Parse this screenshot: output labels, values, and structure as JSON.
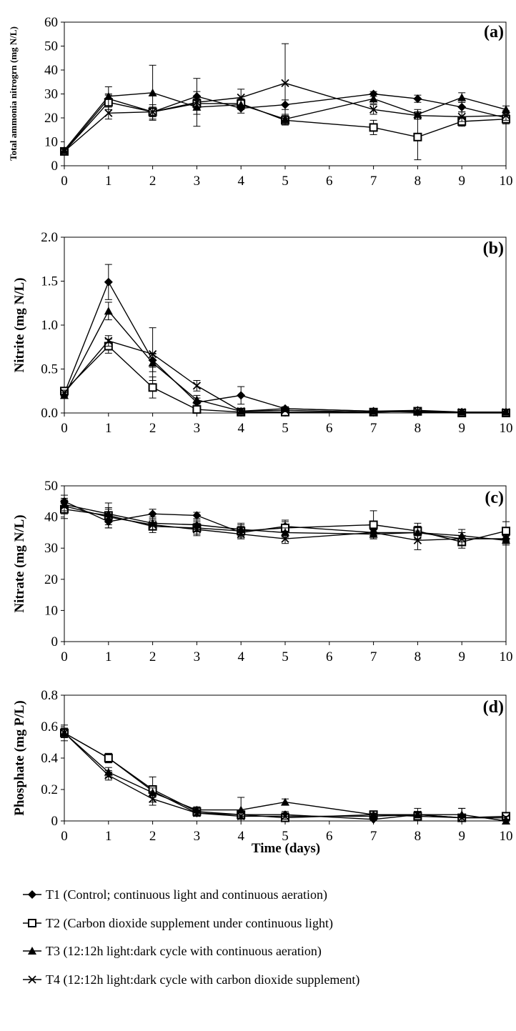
{
  "figure": {
    "x_title": "Time (days)"
  },
  "legend": [
    {
      "marker": "diamond",
      "label": "T1 (Control; continuous light and continuous aeration)"
    },
    {
      "marker": "square",
      "label": "T2 (Carbon dioxide supplement under continuous light)"
    },
    {
      "marker": "triangle",
      "label": "T3 (12:12h light:dark cycle with continuous aeration)"
    },
    {
      "marker": "cross",
      "label": "T4 (12:12h light:dark cycle with carbon dioxide supplement)"
    }
  ],
  "chart_data": [
    {
      "type": "line",
      "panel": "(a)",
      "ylabel": "Total ammonia nitrogrn (mg N/L)",
      "x_ticks": [
        "0",
        "1",
        "2",
        "3",
        "4",
        "5",
        "6",
        "7",
        "8",
        "9",
        "10"
      ],
      "y_ticks": [
        "0",
        "10",
        "20",
        "30",
        "40",
        "50",
        "60"
      ],
      "ylim": [
        0,
        60
      ],
      "x": [
        0,
        1,
        2,
        3,
        4,
        5,
        7,
        8,
        9,
        10
      ],
      "grid": false,
      "series": [
        {
          "name": "T1",
          "marker": "diamond",
          "values": [
            6,
            28,
            22.5,
            29,
            24,
            25.5,
            30,
            28,
            24.5,
            20
          ],
          "errors": [
            1,
            2,
            2,
            2,
            2,
            2,
            1,
            1.5,
            2,
            1
          ]
        },
        {
          "name": "T2",
          "marker": "square",
          "values": [
            6,
            26.5,
            22.5,
            26,
            26,
            19,
            16,
            12,
            18.5,
            19.5
          ],
          "errors": [
            1,
            3,
            2,
            2,
            2,
            2,
            3,
            9.5,
            2,
            2
          ]
        },
        {
          "name": "T3",
          "marker": "triangle",
          "values": [
            6.5,
            29,
            30.5,
            24.5,
            25.5,
            19.5,
            28,
            21.5,
            28.5,
            23.5
          ],
          "errors": [
            1,
            4,
            11.5,
            3,
            2,
            2,
            2,
            2,
            2,
            1.5
          ]
        },
        {
          "name": "T4",
          "marker": "cross",
          "values": [
            6,
            22,
            22.5,
            26.5,
            28.5,
            34.5,
            23.5,
            21,
            20.5,
            21
          ],
          "errors": [
            1,
            2.5,
            3,
            10,
            3.5,
            16.5,
            2,
            1.5,
            2,
            2
          ]
        }
      ]
    },
    {
      "type": "line",
      "panel": "(b)",
      "ylabel": "Nitrite (mg N/L)",
      "x_ticks": [
        "0",
        "1",
        "2",
        "3",
        "4",
        "5",
        "6",
        "7",
        "8",
        "9",
        "10"
      ],
      "y_ticks": [
        "0.0",
        "0.5",
        "1.0",
        "1.5",
        "2.0"
      ],
      "ylim": [
        0,
        2
      ],
      "x": [
        0,
        1,
        2,
        3,
        4,
        5,
        7,
        8,
        9,
        10
      ],
      "grid": false,
      "series": [
        {
          "name": "T1",
          "marker": "diamond",
          "values": [
            0.22,
            1.49,
            0.6,
            0.12,
            0.2,
            0.05,
            0.02,
            0.03,
            0.01,
            0.01
          ],
          "errors": [
            0.03,
            0.2,
            0.08,
            0.05,
            0.1,
            0.02,
            0.01,
            0.01,
            0.01,
            0.01
          ]
        },
        {
          "name": "T2",
          "marker": "square",
          "values": [
            0.25,
            0.76,
            0.29,
            0.04,
            0.01,
            0.01,
            0.01,
            0.02,
            0.0,
            0.0
          ],
          "errors": [
            0.03,
            0.08,
            0.12,
            0.03,
            0.01,
            0.01,
            0.01,
            0.01,
            0.01,
            0.01
          ]
        },
        {
          "name": "T3",
          "marker": "triangle",
          "values": [
            0.2,
            1.16,
            0.57,
            0.15,
            0.02,
            0.05,
            0.02,
            0.01,
            0.01,
            0.01
          ],
          "errors": [
            0.03,
            0.1,
            0.1,
            0.05,
            0.01,
            0.02,
            0.01,
            0.01,
            0.01,
            0.01
          ]
        },
        {
          "name": "T4",
          "marker": "cross",
          "values": [
            0.23,
            0.82,
            0.67,
            0.31,
            0.02,
            0.03,
            0.01,
            0.02,
            0.01,
            0.01
          ],
          "errors": [
            0.03,
            0.06,
            0.3,
            0.06,
            0.01,
            0.01,
            0.01,
            0.01,
            0.01,
            0.01
          ]
        }
      ]
    },
    {
      "type": "line",
      "panel": "(c)",
      "ylabel": "Nitrate (mg N/L)",
      "x_ticks": [
        "0",
        "1",
        "2",
        "3",
        "4",
        "5",
        "6",
        "7",
        "8",
        "9",
        "10"
      ],
      "y_ticks": [
        "0",
        "10",
        "20",
        "30",
        "40",
        "50"
      ],
      "ylim": [
        0,
        50
      ],
      "x": [
        0,
        1,
        2,
        3,
        4,
        5,
        7,
        8,
        9,
        10
      ],
      "grid": false,
      "series": [
        {
          "name": "T1",
          "marker": "diamond",
          "values": [
            45,
            38.5,
            41,
            40.5,
            35,
            37,
            35,
            35,
            33,
            33
          ],
          "errors": [
            2,
            2,
            1.5,
            1,
            2,
            2,
            1,
            2,
            2,
            1
          ]
        },
        {
          "name": "T2",
          "marker": "square",
          "values": [
            42.5,
            40.5,
            37,
            36.5,
            35.5,
            36.5,
            37.5,
            35.5,
            32,
            35.5
          ],
          "errors": [
            3,
            4,
            2,
            2,
            2,
            2,
            4.5,
            2.5,
            2,
            3
          ]
        },
        {
          "name": "T3",
          "marker": "triangle",
          "values": [
            44,
            41,
            38,
            37.5,
            36,
            35,
            34.5,
            35,
            34,
            32.5
          ],
          "errors": [
            2,
            2,
            2,
            1.5,
            2,
            1.5,
            1.5,
            2,
            2,
            1.5
          ]
        },
        {
          "name": "T4",
          "marker": "cross",
          "values": [
            43.5,
            40,
            37.5,
            36,
            34.5,
            33,
            35,
            32.5,
            33,
            33
          ],
          "errors": [
            2.5,
            2.5,
            1.5,
            2,
            1.5,
            1.5,
            1.5,
            3,
            2,
            1.5
          ]
        }
      ]
    },
    {
      "type": "line",
      "panel": "(d)",
      "ylabel": "Phosphate (mg P/L)",
      "x_ticks": [
        "0",
        "1",
        "2",
        "3",
        "4",
        "5",
        "6",
        "7",
        "8",
        "9",
        "10"
      ],
      "y_ticks": [
        "0",
        "0.2",
        "0.4",
        "0.6",
        "0.8"
      ],
      "ylim": [
        0,
        0.8
      ],
      "x": [
        0,
        1,
        2,
        3,
        4,
        5,
        7,
        8,
        9,
        10
      ],
      "xlabel": "Time (days)",
      "grid": false,
      "series": [
        {
          "name": "T1",
          "marker": "diamond",
          "values": [
            0.56,
            0.4,
            0.19,
            0.05,
            0.04,
            0.04,
            0.01,
            0.04,
            0.02,
            0.02
          ],
          "errors": [
            0.03,
            0.03,
            0.03,
            0.02,
            0.02,
            0.02,
            0.01,
            0.02,
            0.02,
            0.01
          ]
        },
        {
          "name": "T2",
          "marker": "square",
          "values": [
            0.56,
            0.4,
            0.2,
            0.06,
            0.04,
            0.02,
            0.04,
            0.03,
            0.02,
            0.03
          ],
          "errors": [
            0.03,
            0.03,
            0.08,
            0.02,
            0.02,
            0.02,
            0.02,
            0.05,
            0.06,
            0.02
          ]
        },
        {
          "name": "T3",
          "marker": "triangle",
          "values": [
            0.56,
            0.31,
            0.18,
            0.07,
            0.07,
            0.12,
            0.04,
            0.04,
            0.04,
            0.0
          ],
          "errors": [
            0.05,
            0.03,
            0.03,
            0.02,
            0.08,
            0.02,
            0.01,
            0.02,
            0.04,
            0.01
          ]
        },
        {
          "name": "T4",
          "marker": "cross",
          "values": [
            0.56,
            0.29,
            0.14,
            0.05,
            0.03,
            0.03,
            0.03,
            0.04,
            0.02,
            0.02
          ],
          "errors": [
            0.03,
            0.03,
            0.04,
            0.02,
            0.02,
            0.02,
            0.01,
            0.02,
            0.02,
            0.01
          ]
        }
      ]
    }
  ]
}
